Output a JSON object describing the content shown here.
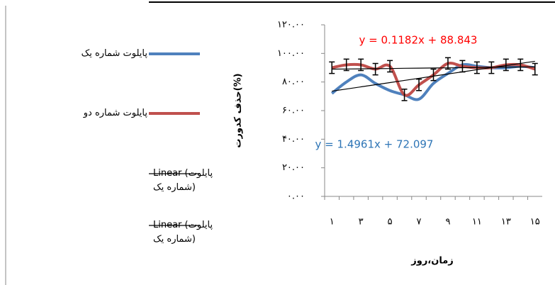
{
  "chart_data": {
    "type": "line",
    "x_label": "زمان،روز",
    "y_label": "حذف کدورت(%)",
    "categories": [
      "۱",
      null,
      "۳",
      null,
      "۵",
      null,
      "۷",
      null,
      "۹",
      null,
      "۱۱",
      null,
      "۱۳",
      null,
      "۱۵"
    ],
    "ylim": [
      0,
      120
    ],
    "yticks": [
      {
        "value": 0,
        "label": "۰.۰۰"
      },
      {
        "value": 20,
        "label": "۲۰.۰۰"
      },
      {
        "value": 40,
        "label": "۴۰.۰۰"
      },
      {
        "value": 60,
        "label": "۶۰.۰۰"
      },
      {
        "value": 80,
        "label": "۸۰.۰۰"
      },
      {
        "value": 100,
        "label": "۱۰۰.۰۰"
      },
      {
        "value": 120,
        "label": "۱۲۰.۰۰"
      }
    ],
    "series": [
      {
        "name": "پایلوت شماره یک",
        "color": "#4f81bd",
        "values": [
          72,
          80,
          85,
          79,
          74,
          71,
          68,
          79,
          86,
          92,
          91,
          90,
          90,
          91,
          90
        ]
      },
      {
        "name": "پایلوت شماره دو",
        "color": "#c0504d",
        "values": [
          90,
          92,
          92,
          89,
          91,
          71,
          78,
          85,
          93,
          91,
          90,
          90,
          92,
          92,
          89
        ],
        "errors": [
          4,
          4,
          4,
          4,
          4,
          4,
          4,
          4,
          4,
          4,
          4,
          4,
          4,
          4,
          4
        ]
      },
      {
        "name": "Linear (پایلوت شماره یک)",
        "color": "#000000",
        "values": [
          73.6,
          75.1,
          76.6,
          78.1,
          79.6,
          81.1,
          82.6,
          84.1,
          85.6,
          87.1,
          88.6,
          90.1,
          91.5,
          93.0,
          94.5
        ]
      },
      {
        "name": "Linear (پایلوت شماره یک)",
        "color": "#000000",
        "values": [
          89.0,
          89.1,
          89.2,
          89.3,
          89.4,
          89.6,
          89.7,
          89.8,
          89.9,
          90.0,
          90.1,
          90.3,
          90.4,
          90.5,
          90.6
        ]
      }
    ],
    "annotations": [
      {
        "text": "y = 0.1182x + 88.843",
        "color": "#ff0000"
      },
      {
        "text": "y = 1.4961x + 72.097",
        "color": "#2e75b6"
      }
    ]
  }
}
